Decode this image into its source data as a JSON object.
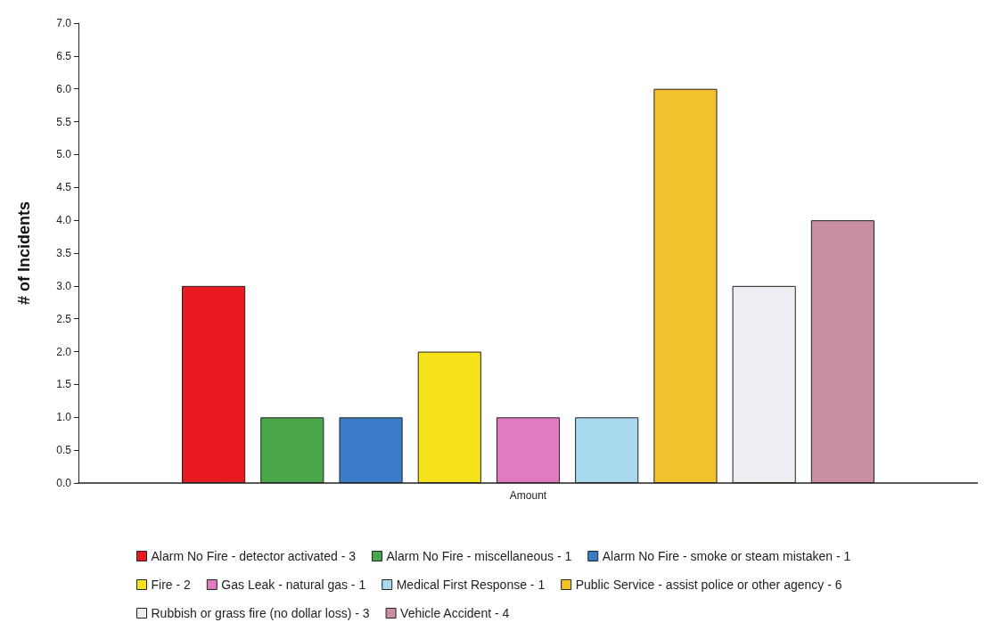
{
  "chart_data": {
    "type": "bar",
    "ylabel": "# of Incidents",
    "categories": [
      "Amount"
    ],
    "ylim": [
      0,
      7
    ],
    "yticks": [
      {
        "value": 0,
        "label": "0.0"
      },
      {
        "value": 0.5,
        "label": "0.5"
      },
      {
        "value": 1,
        "label": "1.0"
      },
      {
        "value": 1.5,
        "label": "1.5"
      },
      {
        "value": 2,
        "label": "2.0"
      },
      {
        "value": 2.5,
        "label": "2.5"
      },
      {
        "value": 3,
        "label": "3.0"
      },
      {
        "value": 3.5,
        "label": "3.5"
      },
      {
        "value": 4,
        "label": "4.0"
      },
      {
        "value": 4.5,
        "label": "4.5"
      },
      {
        "value": 5,
        "label": "5.0"
      },
      {
        "value": 5.5,
        "label": "5.5"
      },
      {
        "value": 6,
        "label": "6.0"
      },
      {
        "value": 6.5,
        "label": "6.5"
      },
      {
        "value": 7,
        "label": "7.0"
      }
    ],
    "grid": false,
    "legend": "bottom",
    "series": [
      {
        "name": "Alarm No Fire - detector activated - 3",
        "color": "#e8191f",
        "values": [
          3
        ]
      },
      {
        "name": "Alarm No Fire - miscellaneous - 1",
        "color": "#4aa84a",
        "values": [
          1
        ]
      },
      {
        "name": "Alarm No Fire - smoke or steam mistaken - 1",
        "color": "#3a7cc8",
        "values": [
          1
        ]
      },
      {
        "name": "Fire - 2",
        "color": "#f5e21a",
        "values": [
          2
        ]
      },
      {
        "name": "Gas Leak - natural gas - 1",
        "color": "#e27ac0",
        "values": [
          1
        ]
      },
      {
        "name": "Medical First Response - 1",
        "color": "#a9d9ef",
        "values": [
          1
        ]
      },
      {
        "name": "Public Service - assist police or other agency - 6",
        "color": "#f2c12e",
        "values": [
          6
        ]
      },
      {
        "name": "Rubbish or grass fire (no dollar loss) - 3",
        "color": "#eeeef2",
        "values": [
          3
        ]
      },
      {
        "name": "Vehicle Accident - 4",
        "color": "#c98fa0",
        "values": [
          4
        ]
      }
    ]
  }
}
